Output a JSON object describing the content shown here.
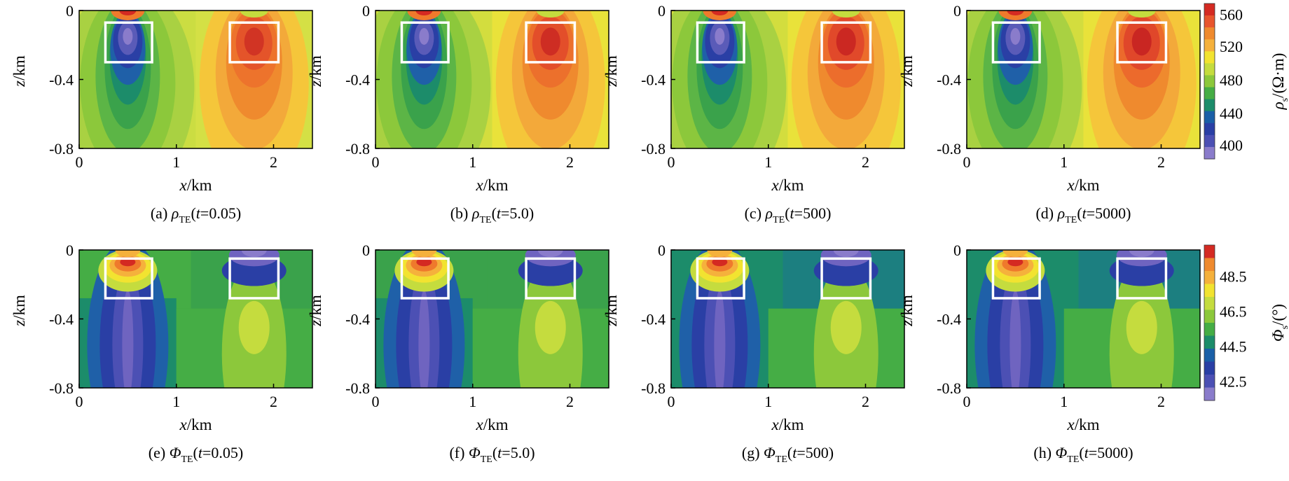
{
  "figure": {
    "panels": [
      {
        "caption": "(a) ",
        "sym": "ρ",
        "sub": "TE",
        "tparam": "0.05",
        "quantity": "rho"
      },
      {
        "caption": "(b) ",
        "sym": "ρ",
        "sub": "TE",
        "tparam": "5.0",
        "quantity": "rho"
      },
      {
        "caption": "(c) ",
        "sym": "ρ",
        "sub": "TE",
        "tparam": "500",
        "quantity": "rho"
      },
      {
        "caption": "(d) ",
        "sym": "ρ",
        "sub": "TE",
        "tparam": "5000",
        "quantity": "rho"
      },
      {
        "caption": "(e) ",
        "sym": "Φ",
        "sub": "TE",
        "tparam": "0.05",
        "quantity": "phi"
      },
      {
        "caption": "(f) ",
        "sym": "Φ",
        "sub": "TE",
        "tparam": "5.0",
        "quantity": "phi"
      },
      {
        "caption": "(g) ",
        "sym": "Φ",
        "sub": "TE",
        "tparam": "500",
        "quantity": "phi"
      },
      {
        "caption": "(h) ",
        "sym": "Φ",
        "sub": "TE",
        "tparam": "5000",
        "quantity": "phi"
      }
    ],
    "x_ticks": [
      "0",
      "1",
      "2"
    ],
    "z_ticks": [
      "0",
      "-0.4",
      "-0.8"
    ],
    "x_label_italic": "x",
    "x_label_unit": "/km",
    "z_label_italic": "z",
    "z_label_unit": "/km",
    "colorbars": {
      "rho": {
        "sym": "ρ",
        "sub": "s",
        "unit": "/(Ω·m)",
        "ticks": [
          "560",
          "520",
          "480",
          "440",
          "400"
        ]
      },
      "phi": {
        "sym": "Φ",
        "sub": "s",
        "unit": "/(°)",
        "ticks": [
          "48.5",
          "46.5",
          "44.5",
          "42.5"
        ]
      }
    },
    "colors": {
      "rho_scale": [
        "#d42a22",
        "#e8552d",
        "#ef8a2e",
        "#f5b13c",
        "#f2e330",
        "#c5dc3e",
        "#8cc83b",
        "#45ad45",
        "#1c8c6a",
        "#1a5fa7",
        "#2a3fa5",
        "#4c50b4",
        "#8a7ccb"
      ],
      "phi_scale": [
        "#d42a22",
        "#ef8a2e",
        "#f5b13c",
        "#f2e330",
        "#c5dc3e",
        "#8cc83b",
        "#45ad45",
        "#1c8c6a",
        "#1a5fa7",
        "#2a3fa5",
        "#4c50b4",
        "#8a7ccb"
      ],
      "box": "#ffffff"
    }
  },
  "chart_data": [
    {
      "type": "heatmap",
      "title": "(a) ρTE(t=0.05)",
      "xlabel": "x/km",
      "ylabel": "z/km",
      "xlim": [
        0,
        2.4
      ],
      "ylim": [
        -0.8,
        0
      ],
      "colorbar_label": "ρs/(Ω·m)",
      "clim": [
        400,
        570
      ],
      "anomalies": [
        {
          "kind": "low",
          "center_x": 0.5,
          "min": 430,
          "box_x": [
            0.27,
            0.75
          ],
          "box_z": [
            -0.3,
            -0.07
          ]
        },
        {
          "kind": "high",
          "center_x": 1.8,
          "max": 550,
          "box_x": [
            1.55,
            2.05
          ],
          "box_z": [
            -0.3,
            -0.07
          ]
        }
      ]
    },
    {
      "type": "heatmap",
      "title": "(b) ρTE(t=5.0)",
      "xlabel": "x/km",
      "ylabel": "z/km",
      "xlim": [
        0,
        2.4
      ],
      "ylim": [
        -0.8,
        0
      ],
      "colorbar_label": "ρs/(Ω·m)",
      "clim": [
        400,
        570
      ],
      "anomalies": [
        {
          "kind": "low",
          "center_x": 0.5,
          "min": 430,
          "box_x": [
            0.27,
            0.75
          ],
          "box_z": [
            -0.3,
            -0.07
          ]
        },
        {
          "kind": "high",
          "center_x": 1.8,
          "max": 555,
          "box_x": [
            1.55,
            2.05
          ],
          "box_z": [
            -0.3,
            -0.07
          ]
        }
      ]
    },
    {
      "type": "heatmap",
      "title": "(c) ρTE(t=500)",
      "xlabel": "x/km",
      "ylabel": "z/km",
      "xlim": [
        0,
        2.4
      ],
      "ylim": [
        -0.8,
        0
      ],
      "colorbar_label": "ρs/(Ω·m)",
      "clim": [
        400,
        570
      ],
      "anomalies": [
        {
          "kind": "low",
          "center_x": 0.5,
          "min": 430,
          "box_x": [
            0.27,
            0.75
          ],
          "box_z": [
            -0.3,
            -0.07
          ]
        },
        {
          "kind": "high",
          "center_x": 1.8,
          "max": 560,
          "box_x": [
            1.55,
            2.05
          ],
          "box_z": [
            -0.3,
            -0.07
          ]
        }
      ]
    },
    {
      "type": "heatmap",
      "title": "(d) ρTE(t=5000)",
      "xlabel": "x/km",
      "ylabel": "z/km",
      "xlim": [
        0,
        2.4
      ],
      "ylim": [
        -0.8,
        0
      ],
      "colorbar_label": "ρs/(Ω·m)",
      "clim": [
        400,
        570
      ],
      "anomalies": [
        {
          "kind": "low",
          "center_x": 0.5,
          "min": 430,
          "box_x": [
            0.27,
            0.75
          ],
          "box_z": [
            -0.3,
            -0.07
          ]
        },
        {
          "kind": "high",
          "center_x": 1.8,
          "max": 560,
          "box_x": [
            1.55,
            2.05
          ],
          "box_z": [
            -0.3,
            -0.07
          ]
        }
      ]
    },
    {
      "type": "heatmap",
      "title": "(e) ΦTE(t=0.05)",
      "xlabel": "x/km",
      "ylabel": "z/km",
      "xlim": [
        0,
        2.4
      ],
      "ylim": [
        -0.8,
        0
      ],
      "colorbar_label": "Φs/(°)",
      "clim": [
        42,
        50
      ],
      "anomalies": [
        {
          "kind": "high",
          "center_x": 0.5,
          "max": 49.5,
          "box_x": [
            0.27,
            0.75
          ],
          "box_z": [
            -0.28,
            -0.05
          ]
        },
        {
          "kind": "low",
          "center_x": 1.8,
          "min": 43,
          "box_x": [
            1.55,
            2.05
          ],
          "box_z": [
            -0.28,
            -0.05
          ]
        }
      ]
    },
    {
      "type": "heatmap",
      "title": "(f) ΦTE(t=5.0)",
      "xlabel": "x/km",
      "ylabel": "z/km",
      "xlim": [
        0,
        2.4
      ],
      "ylim": [
        -0.8,
        0
      ],
      "colorbar_label": "Φs/(°)",
      "clim": [
        42,
        50
      ],
      "anomalies": [
        {
          "kind": "high",
          "center_x": 0.5,
          "max": 49.5,
          "box_x": [
            0.27,
            0.75
          ],
          "box_z": [
            -0.28,
            -0.05
          ]
        },
        {
          "kind": "low",
          "center_x": 1.8,
          "min": 43,
          "box_x": [
            1.55,
            2.05
          ],
          "box_z": [
            -0.28,
            -0.05
          ]
        }
      ]
    },
    {
      "type": "heatmap",
      "title": "(g) ΦTE(t=500)",
      "xlabel": "x/km",
      "ylabel": "z/km",
      "xlim": [
        0,
        2.4
      ],
      "ylim": [
        -0.8,
        0
      ],
      "colorbar_label": "Φs/(°)",
      "clim": [
        42,
        50
      ],
      "anomalies": [
        {
          "kind": "high",
          "center_x": 0.5,
          "max": 49.5,
          "box_x": [
            0.27,
            0.75
          ],
          "box_z": [
            -0.28,
            -0.05
          ]
        },
        {
          "kind": "low",
          "center_x": 1.8,
          "min": 43,
          "box_x": [
            1.55,
            2.05
          ],
          "box_z": [
            -0.28,
            -0.05
          ]
        }
      ]
    },
    {
      "type": "heatmap",
      "title": "(h) ΦTE(t=5000)",
      "xlabel": "x/km",
      "ylabel": "z/km",
      "xlim": [
        0,
        2.4
      ],
      "ylim": [
        -0.8,
        0
      ],
      "colorbar_label": "Φs/(°)",
      "clim": [
        42,
        50
      ],
      "anomalies": [
        {
          "kind": "high",
          "center_x": 0.5,
          "max": 49.5,
          "box_x": [
            0.27,
            0.75
          ],
          "box_z": [
            -0.28,
            -0.05
          ]
        },
        {
          "kind": "low",
          "center_x": 1.8,
          "min": 43,
          "box_x": [
            1.55,
            2.05
          ],
          "box_z": [
            -0.28,
            -0.05
          ]
        }
      ]
    }
  ]
}
